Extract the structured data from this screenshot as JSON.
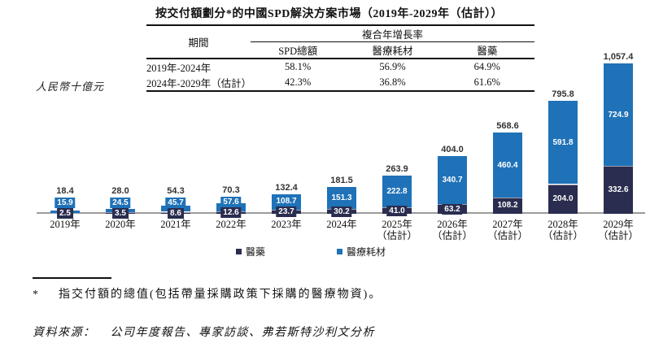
{
  "title": "按交付額劃分*的中國SPD解決方案市場（2019年-2029年（估計））",
  "table": {
    "period_header": "期間",
    "cagr_header": "複合年增長率",
    "sub_headers": [
      "SPD總額",
      "醫療耗材",
      "醫藥"
    ],
    "rows": [
      {
        "period": "2019年-2024年",
        "values": [
          "58.1%",
          "56.9%",
          "64.9%"
        ]
      },
      {
        "period": "2024年-2029年（估計）",
        "values": [
          "42.3%",
          "36.8%",
          "61.6%"
        ]
      }
    ]
  },
  "y_axis_label": "人民幣十億元",
  "chart_data": {
    "type": "bar",
    "stacked": true,
    "title": "按交付額劃分的中國SPD解決方案市場",
    "ylabel": "人民幣十億元",
    "ylim": [
      0,
      1100
    ],
    "grid": false,
    "legend_position": "bottom",
    "categories": [
      "2019年",
      "2020年",
      "2021年",
      "2022年",
      "2023年",
      "2024年",
      "2025年",
      "2026年",
      "2027年",
      "2028年",
      "2029年"
    ],
    "category_sublabels": [
      "",
      "",
      "",
      "",
      "",
      "",
      "（估計）",
      "（估計）",
      "（估計）",
      "（估計）",
      "（估計）"
    ],
    "series": [
      {
        "name": "醫藥",
        "color": "#2a2d4f",
        "values": [
          2.5,
          3.5,
          8.6,
          12.6,
          23.7,
          30.2,
          41.0,
          63.2,
          108.2,
          204.0,
          332.6
        ]
      },
      {
        "name": "醫療耗材",
        "color": "#1f72b8",
        "values": [
          15.9,
          24.5,
          45.7,
          57.6,
          108.7,
          151.3,
          222.8,
          340.7,
          460.4,
          591.8,
          724.9
        ]
      }
    ],
    "total_labels": [
      "18.4",
      "28.0",
      "54.3",
      "70.3",
      "132.4",
      "181.5",
      "263.9",
      "404.0",
      "568.6",
      "795.8",
      "1,057.4"
    ]
  },
  "legend": [
    {
      "label": "醫藥",
      "color": "#2a2d4f"
    },
    {
      "label": "醫療耗材",
      "color": "#1f72b8"
    }
  ],
  "footnote": {
    "marker": "*",
    "text": "指交付額的總值(包括帶量採購政策下採購的醫療物資)。"
  },
  "source": {
    "label": "資料來源：",
    "text": "公司年度報告、專家訪談、弗若斯特沙利文分析"
  }
}
